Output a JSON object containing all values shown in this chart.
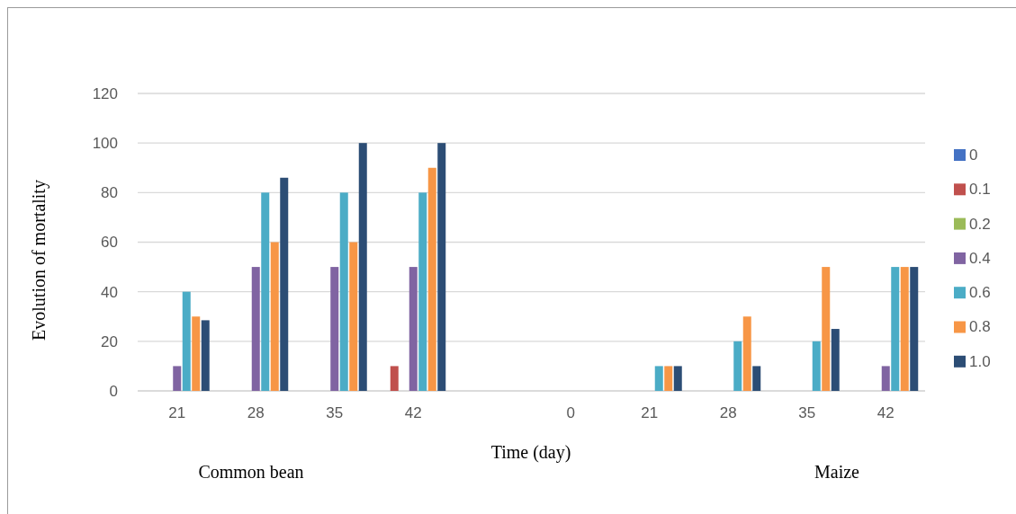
{
  "chart_data": {
    "type": "bar",
    "xlabel": "Time (day)",
    "ylabel": "Evolution of mortality",
    "categories": [
      "21",
      "28",
      "35",
      "42",
      null,
      "0",
      "21",
      "28",
      "35",
      "42"
    ],
    "series": [
      {
        "name": "0",
        "color": "#4472c4",
        "values": [
          0,
          0,
          0,
          0,
          0,
          0,
          0,
          0,
          0,
          0
        ]
      },
      {
        "name": "0.1",
        "color": "#c0504d",
        "values": [
          0,
          0,
          0,
          10,
          0,
          0,
          0,
          0,
          0,
          0
        ]
      },
      {
        "name": "0.2",
        "color": "#9bbb59",
        "values": [
          0,
          0,
          0,
          0,
          0,
          0,
          0,
          0,
          0,
          0
        ]
      },
      {
        "name": "0.4",
        "color": "#8064a2",
        "values": [
          10,
          50,
          50,
          50,
          0,
          0,
          0,
          0,
          0,
          10
        ]
      },
      {
        "name": "0.6",
        "color": "#4bacc6",
        "values": [
          40,
          80,
          80,
          80,
          0,
          0,
          10,
          20,
          20,
          50
        ]
      },
      {
        "name": "0.8",
        "color": "#f79646",
        "values": [
          30,
          60,
          60,
          90,
          0,
          0,
          10,
          30,
          50,
          50
        ]
      },
      {
        "name": "1.0",
        "color": "#2c4d75",
        "values": [
          28.5,
          86,
          100,
          100,
          0,
          0,
          10,
          10,
          25,
          50
        ]
      }
    ],
    "ylim": [
      0,
      120
    ],
    "yticks": [
      0,
      20,
      40,
      60,
      80,
      100,
      120
    ],
    "grid": "y",
    "legend": "right",
    "annotations": [
      "Common bean",
      "Maize"
    ]
  }
}
